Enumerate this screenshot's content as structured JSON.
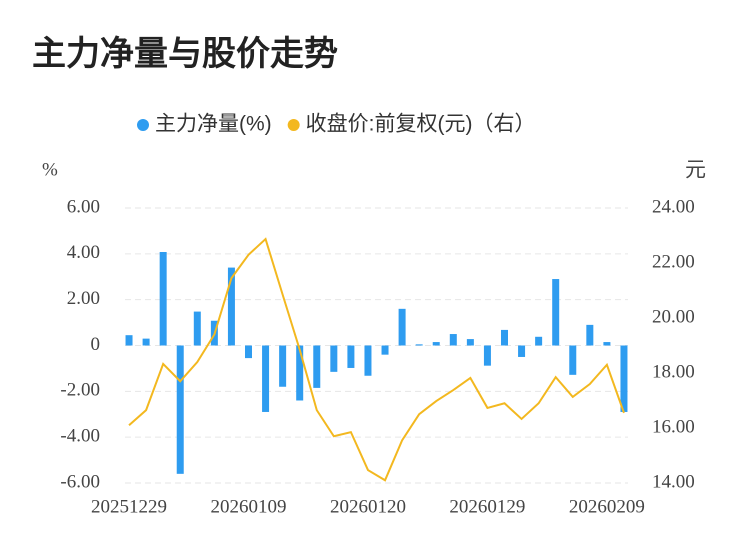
{
  "chart_data": {
    "type": "bar+line",
    "title": "主力净量与股价走势",
    "y_label": "%",
    "y2_label": "元",
    "categories": [
      "20251229",
      null,
      null,
      null,
      null,
      null,
      null,
      "20260109",
      null,
      null,
      null,
      null,
      null,
      null,
      "20260120",
      null,
      null,
      null,
      null,
      null,
      null,
      "20260129",
      null,
      null,
      null,
      null,
      null,
      null,
      "20260209",
      null
    ],
    "series": [
      {
        "name": "主力净量(%)",
        "type": "bar",
        "color": "#2e9cf0",
        "values": [
          0.45,
          0.3,
          4.08,
          -5.6,
          1.48,
          1.08,
          3.4,
          -0.55,
          -2.9,
          -1.8,
          -2.4,
          -1.85,
          -1.15,
          -0.98,
          -1.32,
          -0.4,
          1.6,
          0.05,
          0.15,
          0.5,
          0.28,
          -0.88,
          0.68,
          -0.5,
          0.38,
          2.9,
          -1.28,
          0.9,
          0.15,
          -2.9
        ]
      },
      {
        "name": "收盘价:前复权(元)（右）",
        "type": "line",
        "axis": "y2",
        "color": "#f3b81f",
        "values": [
          16.1,
          16.65,
          18.33,
          17.7,
          18.4,
          19.4,
          21.45,
          22.3,
          22.87,
          20.85,
          18.85,
          16.65,
          15.7,
          15.85,
          14.47,
          14.1,
          15.55,
          16.5,
          16.98,
          17.38,
          17.82,
          16.73,
          16.9,
          16.33,
          16.9,
          17.85,
          17.13,
          17.6,
          18.3,
          16.55
        ]
      }
    ],
    "ylim": [
      -6,
      6
    ],
    "yticks": [
      {
        "value": 6,
        "label": "6.00"
      },
      {
        "value": 4,
        "label": "4.00"
      },
      {
        "value": 2,
        "label": "2.00"
      },
      0,
      {
        "value": -2,
        "label": "-2.00"
      },
      {
        "value": -4,
        "label": "-4.00"
      },
      {
        "value": -6,
        "label": "-6.00"
      }
    ],
    "y2lim": [
      14,
      24
    ],
    "y2ticks": [
      {
        "value": 24,
        "label": "24.00"
      },
      {
        "value": 22,
        "label": "22.00"
      },
      {
        "value": 20,
        "label": "20.00"
      },
      {
        "value": 18,
        "label": "18.00"
      },
      {
        "value": 16,
        "label": "16.00"
      },
      {
        "value": 14,
        "label": "14.00"
      }
    ],
    "grid": true,
    "legend": "top"
  }
}
